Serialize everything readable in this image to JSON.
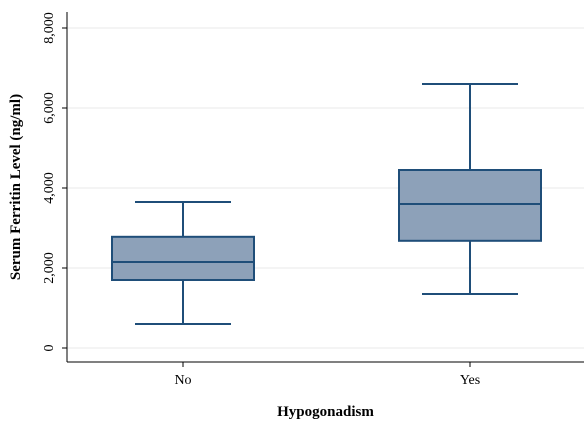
{
  "chart_data": {
    "type": "box",
    "title": "",
    "xlabel": "Hypogonadism",
    "ylabel": "Serum Ferritin Level (ng/ml)",
    "ylim": [
      0,
      8000
    ],
    "yticks": [
      0,
      2000,
      4000,
      6000,
      8000
    ],
    "ytick_labels": [
      "0",
      "2,000",
      "4,000",
      "6,000",
      "8,000"
    ],
    "grid": true,
    "categories": [
      "No",
      "Yes"
    ],
    "boxes": [
      {
        "category": "No",
        "whisker_low": 600,
        "q1": 1700,
        "median": 2150,
        "q3": 2780,
        "whisker_high": 3650
      },
      {
        "category": "Yes",
        "whisker_low": 1350,
        "q1": 2680,
        "median": 3600,
        "q3": 4450,
        "whisker_high": 6600
      }
    ],
    "colors": {
      "box_fill": "#8DA1B9",
      "box_stroke": "#1F4E79",
      "grid": "#e8e8e8",
      "axis": "#000000"
    }
  }
}
